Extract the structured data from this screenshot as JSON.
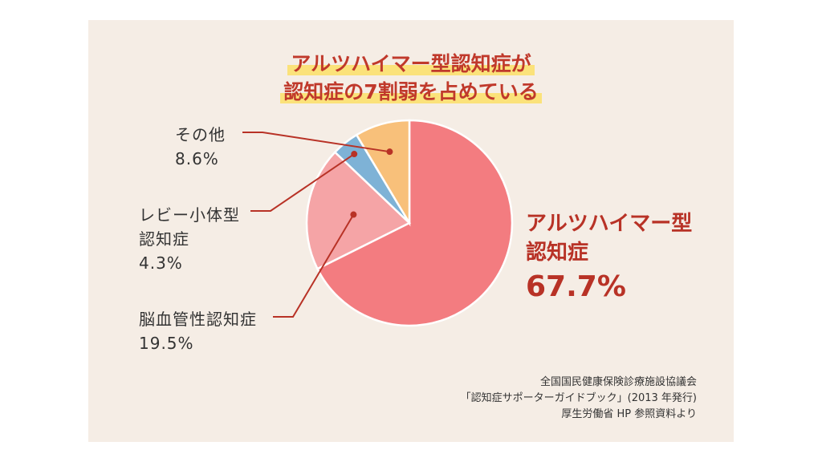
{
  "title_line1": "アルツハイマー型認知症が",
  "title_line2": "認知症の7割弱を占めている",
  "source_lines": [
    "全国国民健康保険診療施設協議会",
    "「認知症サポーターガイドブック」(2013 年発行)",
    "厚生労働省 HP 参照資料より"
  ],
  "chart_data": {
    "type": "pie",
    "title": "アルツハイマー型認知症が認知症の7割弱を占めている",
    "slices": [
      {
        "label_lines": [
          "アルツハイマー型",
          "認知症"
        ],
        "value": 67.7,
        "display": "67.7%",
        "color": "#f37c80"
      },
      {
        "label_lines": [
          "脳血管性認知症"
        ],
        "value": 19.5,
        "display": "19.5%",
        "color": "#f5a4a6"
      },
      {
        "label_lines": [
          "レビー小体型",
          "認知症"
        ],
        "value": 4.3,
        "display": "4.3%",
        "color": "#7eb2d6"
      },
      {
        "label_lines": [
          "その他"
        ],
        "value": 8.6,
        "display": "8.6%",
        "color": "#f8c07a"
      }
    ],
    "legend": "none"
  }
}
